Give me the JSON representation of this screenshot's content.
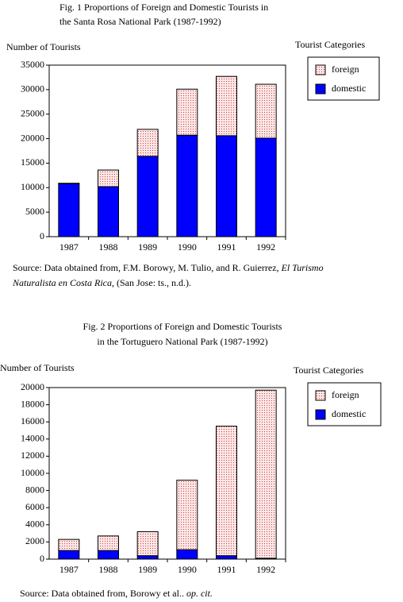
{
  "chart_data": [
    {
      "type": "bar",
      "stacked": true,
      "title": [
        "Fig. 1  Proportions of Foreign and Domestic Tourists in",
        "the Santa Rosa National Park (1987-1992)"
      ],
      "y_label": "Number of Tourists",
      "legend_title": "Tourist Categories",
      "categories": [
        "1987",
        "1988",
        "1989",
        "1990",
        "1991",
        "1992"
      ],
      "series": [
        {
          "name": "foreign",
          "color": "#f6c9c9",
          "values": [
            100,
            3400,
            5500,
            9400,
            12100,
            11000
          ]
        },
        {
          "name": "domestic",
          "color": "#0000ff",
          "values": [
            10800,
            10200,
            16400,
            20700,
            20600,
            20100
          ]
        }
      ],
      "ylim": [
        0,
        35000
      ],
      "yticks": [
        0,
        5000,
        10000,
        15000,
        20000,
        25000,
        30000,
        35000
      ],
      "source": {
        "before": "Source: Data obtained from, F.M. Borowy, M. Tulio, and R. Guierrez, ",
        "italic": "El Turismo Naturalista en Costa Rica",
        "after": ", (San Jose: ts., n.d.)."
      }
    },
    {
      "type": "bar",
      "stacked": true,
      "title": [
        "Fig. 2  Proportions of Foreign and Domestic Tourists",
        "in the Tortuguero National Park (1987-1992)"
      ],
      "y_label": "Number of Tourists",
      "legend_title": "Tourist Categories",
      "categories": [
        "1987",
        "1988",
        "1989",
        "1990",
        "1991",
        "1992"
      ],
      "series": [
        {
          "name": "foreign",
          "color": "#f6c9c9",
          "values": [
            1300,
            1700,
            2800,
            8100,
            15100,
            19600
          ]
        },
        {
          "name": "domestic",
          "color": "#0000ff",
          "values": [
            1000,
            1000,
            400,
            1100,
            400,
            100
          ]
        }
      ],
      "ylim": [
        0,
        20000
      ],
      "yticks": [
        0,
        2000,
        4000,
        6000,
        8000,
        10000,
        12000,
        14000,
        16000,
        18000,
        20000
      ],
      "source": {
        "before": "Source: Data obtained from, Borowy et al.. ",
        "italic": "op. cit.",
        "after": ""
      }
    }
  ]
}
